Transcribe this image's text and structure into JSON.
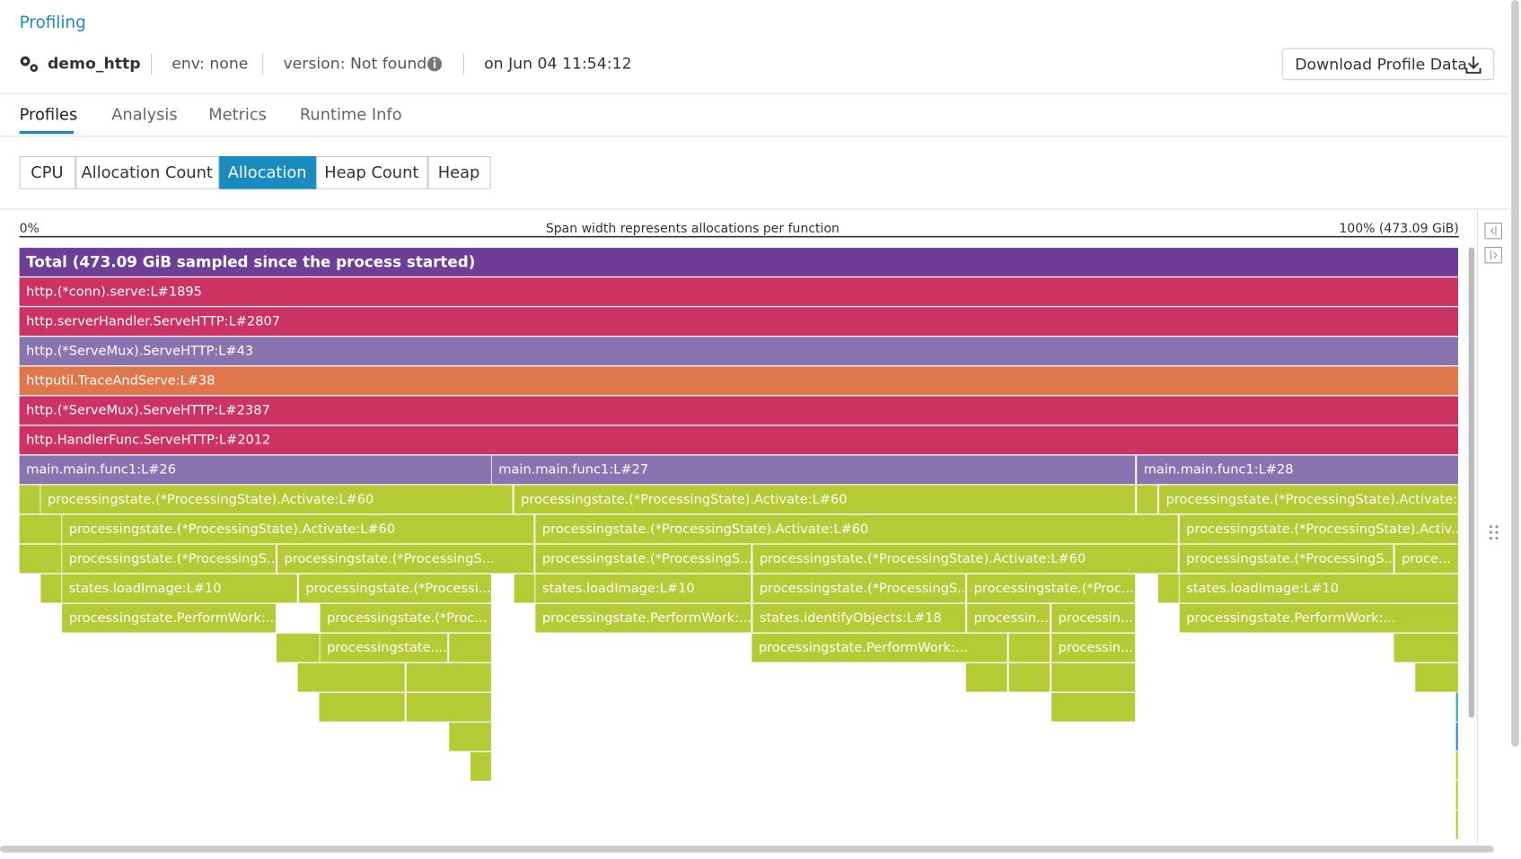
{
  "breadcrumb": "Profiling",
  "header": {
    "service": "demo_http",
    "env": "env: none",
    "version": "version: Not found",
    "time": "on Jun 04 11:54:12",
    "download": "Download Profile Data"
  },
  "tabs": [
    "Profiles",
    "Analysis",
    "Metrics",
    "Runtime Info"
  ],
  "profile_types": [
    "CPU",
    "Allocation Count",
    "Allocation",
    "Heap Count",
    "Heap"
  ],
  "flame": {
    "left_label": "0%",
    "caption": "Span width represents allocations per function",
    "right_label": "100% (473.09 GiB)",
    "frames": [
      "Total (473.09 GiB sampled since the process started)",
      "http.(*conn).serve:L#1895",
      "http.serverHandler.ServeHTTP:L#2807",
      "http.(*ServeMux).ServeHTTP:L#43",
      "httputil.TraceAndServe:L#38",
      "http.(*ServeMux).ServeHTTP:L#2387",
      "http.HandlerFunc.ServeHTTP:L#2012",
      "main.main.func1:L#26",
      "main.main.func1:L#27",
      "main.main.func1:L#28",
      "processingstate.(*ProcessingState).Activate:L#60",
      "processingstate.(*ProcessingState).Activate:L#60",
      "processingstate.(*ProcessingState).Activate:...",
      "processingstate.(*ProcessingState).Activate:L#60",
      "processingstate.(*ProcessingState).Activate:L#60",
      "processingstate.(*ProcessingState).Activ...",
      "processingstate.(*ProcessingS...",
      "processingstate.(*ProcessingS...",
      "processingstate.(*ProcessingS...",
      "processingstate.(*ProcessingState).Activate:L#60",
      "processingstate.(*ProcessingS...",
      "proce...",
      "states.loadImage:L#10",
      "processingstate.(*Processi...",
      "states.loadImage:L#10",
      "processingstate.(*ProcessingS...",
      "processingstate.(*Proc...",
      "states.loadImage:L#10",
      "processingstate.PerformWork:...",
      "processingstate.(*Proc...",
      "processingstate.PerformWork:...",
      "states.identifyObjects:L#18",
      "processin...",
      "processin...",
      "processingstate.PerformWork:...",
      "processingstate....",
      "processingstate.PerformWork:...",
      "processin..."
    ]
  }
}
